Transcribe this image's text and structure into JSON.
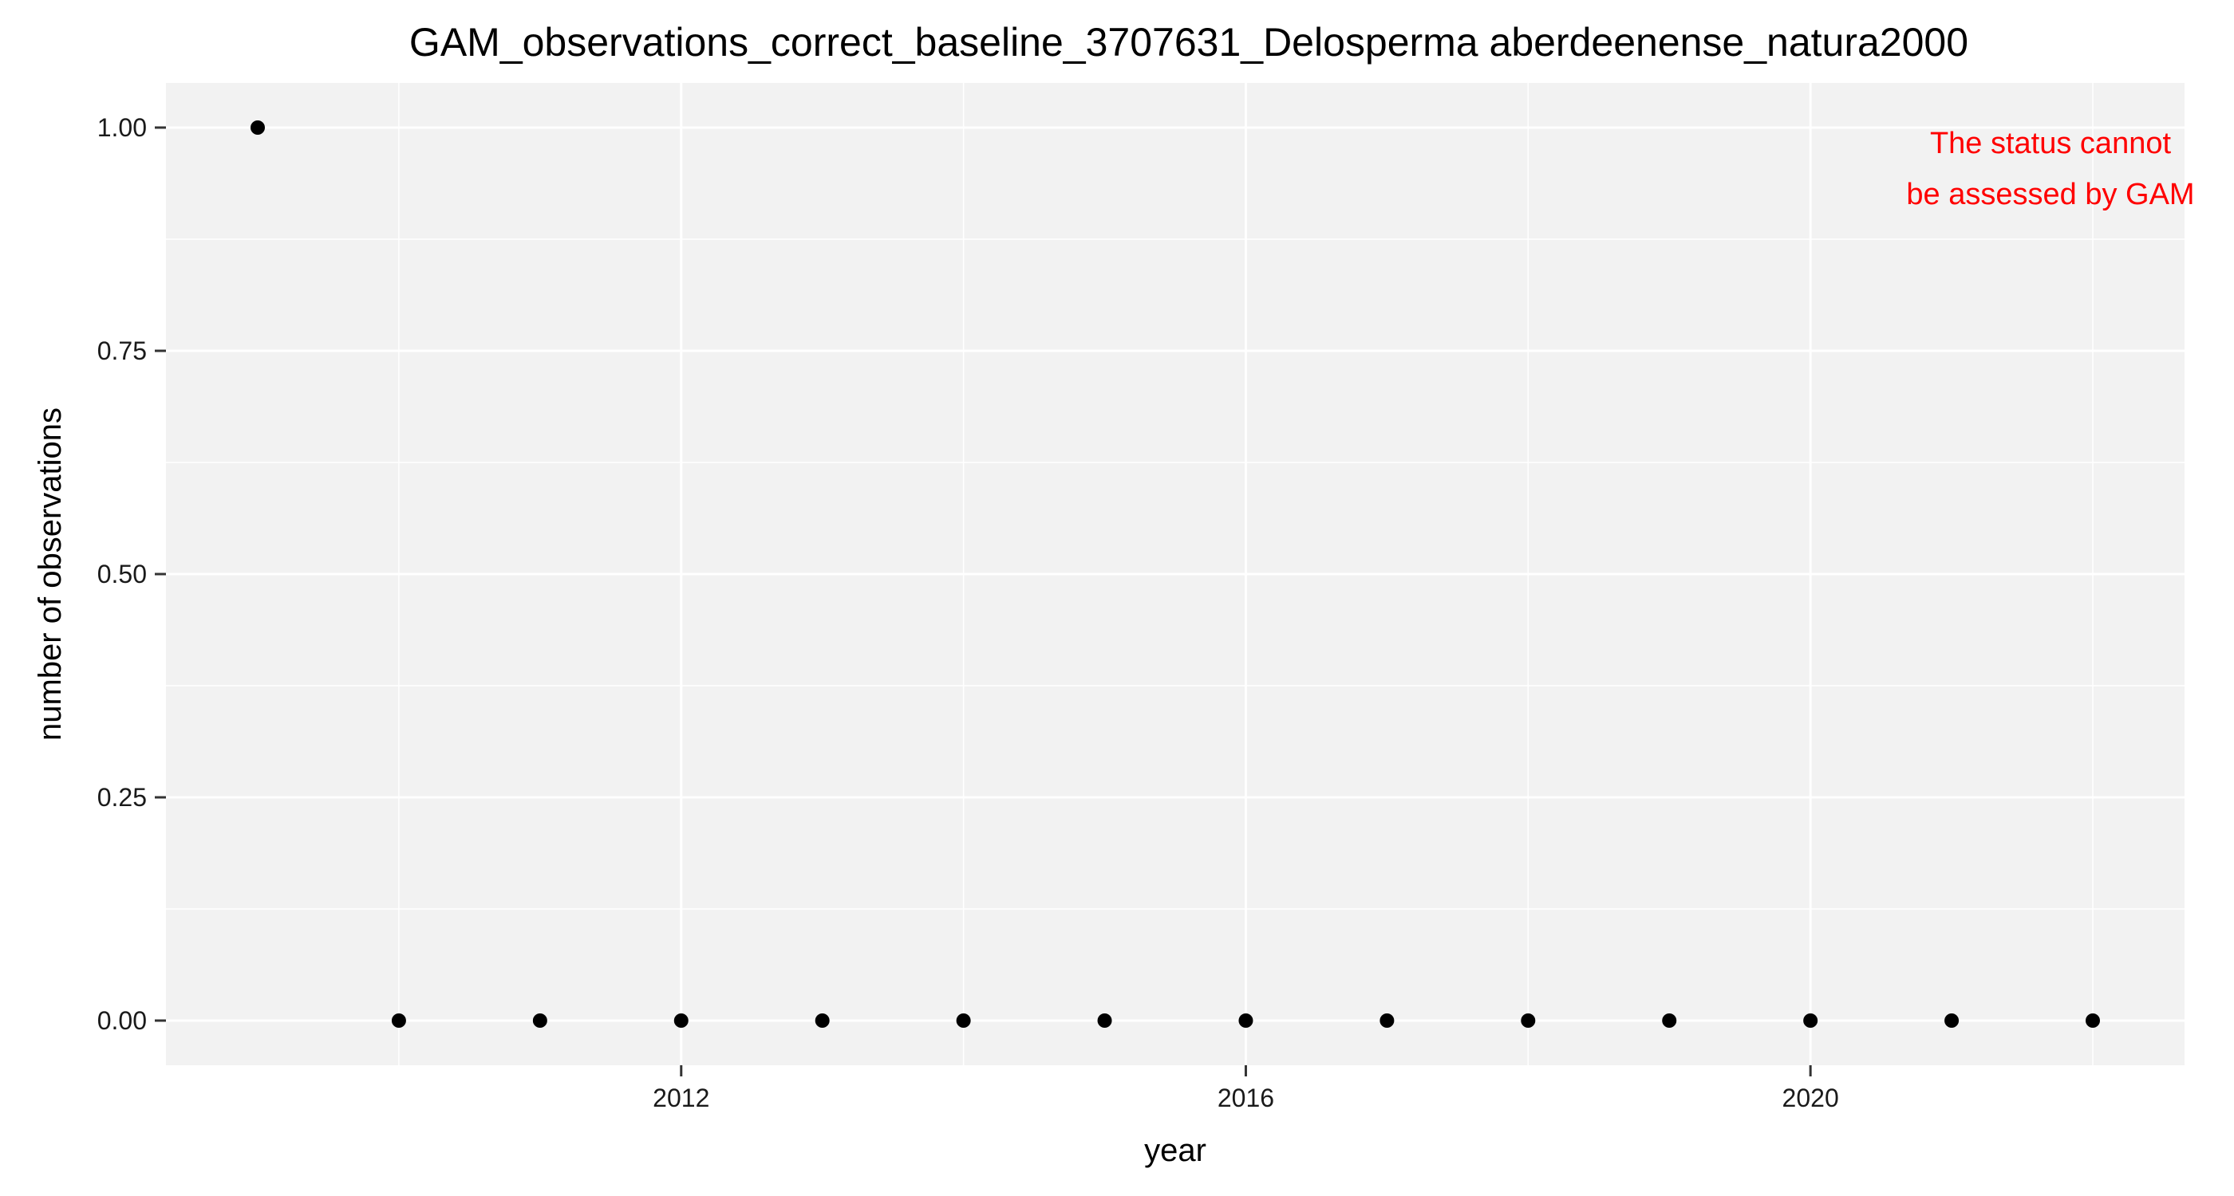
{
  "chart_data": {
    "type": "scatter",
    "title": "GAM_observations_correct_baseline_3707631_Delosperma aberdeenense_natura2000",
    "xlabel": "year",
    "ylabel": "number of observations",
    "xlim": [
      2008.35,
      2022.65
    ],
    "ylim": [
      -0.05,
      1.05
    ],
    "x_ticks": [
      2012,
      2016,
      2020
    ],
    "x_tick_labels": [
      "2012",
      "2016",
      "2020"
    ],
    "y_ticks": [
      0,
      0.25,
      0.5,
      0.75,
      1
    ],
    "y_tick_labels": [
      "0.00",
      "0.25",
      "0.50",
      "0.75",
      "1.00"
    ],
    "x_minor_ticks": [
      2010,
      2014,
      2018,
      2022
    ],
    "y_minor_ticks": [
      0.125,
      0.375,
      0.625,
      0.875
    ],
    "grid": true,
    "legend": "none",
    "points": [
      {
        "x": 2009,
        "y": 1
      },
      {
        "x": 2010,
        "y": 0
      },
      {
        "x": 2011,
        "y": 0
      },
      {
        "x": 2012,
        "y": 0
      },
      {
        "x": 2013,
        "y": 0
      },
      {
        "x": 2014,
        "y": 0
      },
      {
        "x": 2015,
        "y": 0
      },
      {
        "x": 2016,
        "y": 0
      },
      {
        "x": 2017,
        "y": 0
      },
      {
        "x": 2018,
        "y": 0
      },
      {
        "x": 2019,
        "y": 0
      },
      {
        "x": 2020,
        "y": 0
      },
      {
        "x": 2021,
        "y": 0
      },
      {
        "x": 2022,
        "y": 0
      }
    ],
    "annotation": {
      "lines": [
        "The status cannot",
        "be assessed by GAM"
      ],
      "color": "#ff0000"
    },
    "colors": {
      "panel_background": "#f2f2f2",
      "grid": "#ffffff",
      "point": "#000000"
    }
  }
}
